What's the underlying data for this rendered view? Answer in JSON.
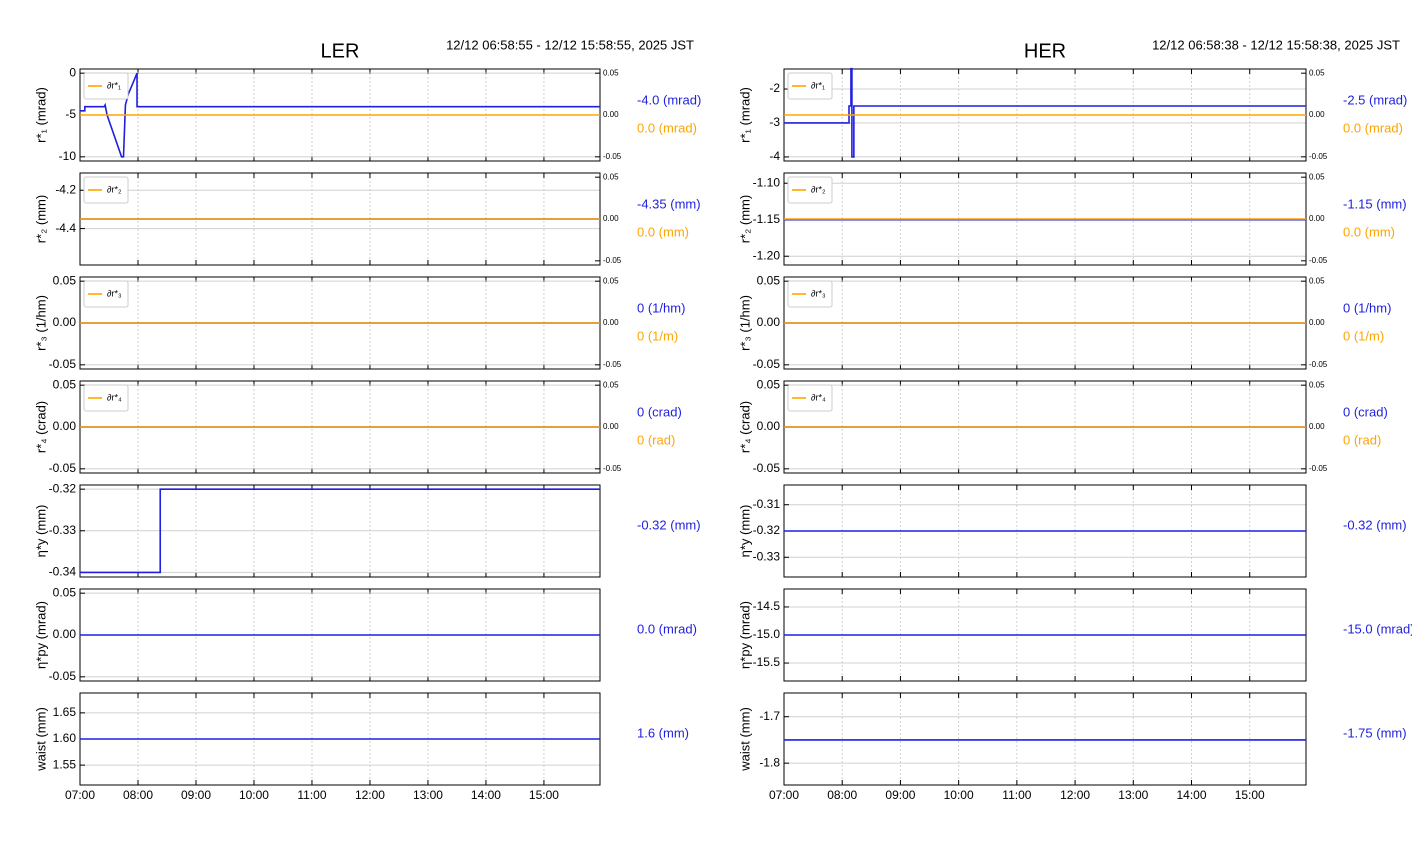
{
  "chart_data": [
    {
      "type": "line",
      "title": "LER",
      "subtitle": "12/12 06:58:55 - 12/12 15:58:55, 2025 JST",
      "ylabel": "r*₁ (mrad)",
      "xlim": [
        "07:00",
        "15:58"
      ],
      "xticks": [
        "07:00",
        "08:00",
        "09:00",
        "10:00",
        "11:00",
        "12:00",
        "13:00",
        "14:00",
        "15:00"
      ],
      "ylim": [
        -10.5,
        0.5
      ],
      "yticks": [
        0,
        -5,
        -10
      ],
      "y2lim": [
        -0.055,
        0.055
      ],
      "y2ticks": [
        0.05,
        {
          "value": 0,
          "label": "0.00"
        },
        -0.05
      ],
      "grid": true,
      "legend": "upper left",
      "series": [
        {
          "color": "#1f1fe0",
          "x": [
            "07:00",
            "07:05",
            "07:05",
            "07:25",
            "07:26",
            "07:28",
            "07:43",
            "07:45",
            "07:47",
            "07:50",
            "07:59",
            "07:59",
            "15:58"
          ],
          "values": [
            -4.5,
            -4.5,
            -4,
            -4,
            -3.8,
            -5,
            -10,
            -10,
            -3.8,
            -2.5,
            0,
            -4,
            -4
          ],
          "readout": "-4.0 (mrad)"
        },
        {
          "name": "∂r*₁",
          "color": "#ffa500",
          "axis": "y2",
          "x": [
            "07:00",
            "15:58"
          ],
          "values": [
            0,
            0
          ],
          "readout": "0.0 (mrad)"
        }
      ]
    },
    {
      "type": "line",
      "ylabel": "r*₂ (mm)",
      "xlim": [
        "07:00",
        "15:58"
      ],
      "xticks": [
        "07:00",
        "08:00",
        "09:00",
        "10:00",
        "11:00",
        "12:00",
        "13:00",
        "14:00",
        "15:00"
      ],
      "ylim": [
        -4.59,
        -4.11
      ],
      "yticks": [
        -4.2,
        -4.4
      ],
      "y2lim": [
        -0.055,
        0.055
      ],
      "y2ticks": [
        0.05,
        {
          "value": 0,
          "label": "0.00"
        },
        -0.05
      ],
      "grid": true,
      "legend": "upper left",
      "series": [
        {
          "color": "#1f1fe0",
          "x": [
            "07:00",
            "15:58"
          ],
          "values": [
            -4.35,
            -4.35
          ],
          "readout": "-4.35 (mm)"
        },
        {
          "name": "∂r*₂",
          "color": "#ffa500",
          "axis": "y2",
          "x": [
            "07:00",
            "15:58"
          ],
          "values": [
            0,
            0
          ],
          "readout": "0.0 (mm)"
        }
      ]
    },
    {
      "type": "line",
      "ylabel": "r*₃ (1/hm)",
      "xlim": [
        "07:00",
        "15:58"
      ],
      "xticks": [
        "07:00",
        "08:00",
        "09:00",
        "10:00",
        "11:00",
        "12:00",
        "13:00",
        "14:00",
        "15:00"
      ],
      "ylim": [
        -0.055,
        0.055
      ],
      "yticks": [
        0.05,
        {
          "value": 0,
          "label": "0.00"
        },
        -0.05
      ],
      "y2lim": [
        -0.055,
        0.055
      ],
      "y2ticks": [
        0.05,
        {
          "value": 0,
          "label": "0.00"
        },
        -0.05
      ],
      "grid": true,
      "legend": "upper left",
      "series": [
        {
          "color": "#1f1fe0",
          "x": [
            "07:00",
            "15:58"
          ],
          "values": [
            0,
            0
          ],
          "readout": "0 (1/hm)"
        },
        {
          "name": "∂r*₃",
          "color": "#ffa500",
          "axis": "y2",
          "x": [
            "07:00",
            "15:58"
          ],
          "values": [
            0,
            0
          ],
          "readout": "0 (1/m)"
        }
      ]
    },
    {
      "type": "line",
      "ylabel": "r*₄ (crad)",
      "xlim": [
        "07:00",
        "15:58"
      ],
      "xticks": [
        "07:00",
        "08:00",
        "09:00",
        "10:00",
        "11:00",
        "12:00",
        "13:00",
        "14:00",
        "15:00"
      ],
      "ylim": [
        -0.055,
        0.055
      ],
      "yticks": [
        0.05,
        {
          "value": 0,
          "label": "0.00"
        },
        -0.05
      ],
      "y2lim": [
        -0.055,
        0.055
      ],
      "y2ticks": [
        0.05,
        {
          "value": 0,
          "label": "0.00"
        },
        -0.05
      ],
      "grid": true,
      "legend": "upper left",
      "series": [
        {
          "color": "#1f1fe0",
          "x": [
            "07:00",
            "15:58"
          ],
          "values": [
            0,
            0
          ],
          "readout": "0 (crad)"
        },
        {
          "name": "∂r*₄",
          "color": "#ffa500",
          "axis": "y2",
          "x": [
            "07:00",
            "15:58"
          ],
          "values": [
            0,
            0
          ],
          "readout": "0 (rad)"
        }
      ]
    },
    {
      "type": "line",
      "ylabel": "η*y (mm)",
      "xlim": [
        "07:00",
        "15:58"
      ],
      "xticks": [
        "07:00",
        "08:00",
        "09:00",
        "10:00",
        "11:00",
        "12:00",
        "13:00",
        "14:00",
        "15:00"
      ],
      "ylim": [
        -0.3411,
        -0.319
      ],
      "yticks": [
        -0.32,
        -0.33,
        -0.34
      ],
      "grid": true,
      "series": [
        {
          "color": "#1f1fe0",
          "x": [
            "07:00",
            "08:23",
            "08:23",
            "15:58"
          ],
          "values": [
            -0.34,
            -0.34,
            -0.32,
            -0.32
          ],
          "readout": "-0.32 (mm)"
        }
      ]
    },
    {
      "type": "line",
      "ylabel": "η*py (mrad)",
      "xlim": [
        "07:00",
        "15:58"
      ],
      "xticks": [
        "07:00",
        "08:00",
        "09:00",
        "10:00",
        "11:00",
        "12:00",
        "13:00",
        "14:00",
        "15:00"
      ],
      "ylim": [
        -0.055,
        0.055
      ],
      "yticks": [
        0.05,
        {
          "value": 0,
          "label": "0.00"
        },
        -0.05
      ],
      "grid": true,
      "series": [
        {
          "color": "#1f1fe0",
          "x": [
            "07:00",
            "15:58"
          ],
          "values": [
            0,
            0
          ],
          "readout": "0.0 (mrad)"
        }
      ]
    },
    {
      "type": "line",
      "ylabel": "waist (mm)",
      "xlim": [
        "07:00",
        "15:58"
      ],
      "xticks": [
        "07:00",
        "08:00",
        "09:00",
        "10:00",
        "11:00",
        "12:00",
        "13:00",
        "14:00",
        "15:00"
      ],
      "ylim": [
        1.512,
        1.688
      ],
      "yticks": [
        1.65,
        {
          "value": 1.6,
          "label": "1.60"
        },
        1.55
      ],
      "grid": true,
      "series": [
        {
          "color": "#1f1fe0",
          "x": [
            "07:00",
            "15:58"
          ],
          "values": [
            1.6,
            1.6
          ],
          "readout": "1.6 (mm)"
        }
      ]
    },
    {
      "type": "line",
      "title": "HER",
      "subtitle": "12/12 06:58:38 - 12/12 15:58:38, 2025 JST",
      "ylabel": "r*₁ (mrad)",
      "xlim": [
        "07:00",
        "15:58"
      ],
      "xticks": [
        "07:00",
        "08:00",
        "09:00",
        "10:00",
        "11:00",
        "12:00",
        "13:00",
        "14:00",
        "15:00"
      ],
      "ylim": [
        -4.12,
        -1.41
      ],
      "yticks": [
        -2,
        -3,
        -4
      ],
      "y2lim": [
        -0.055,
        0.055
      ],
      "y2ticks": [
        0.05,
        {
          "value": 0,
          "label": "0.00"
        },
        -0.05
      ],
      "grid": true,
      "legend": "upper left",
      "series": [
        {
          "color": "#1f1fe0",
          "x": [
            "07:00",
            "08:07",
            "08:07",
            "08:09",
            "08:09",
            "08:10",
            "08:10",
            "08:12",
            "08:12",
            "15:58"
          ],
          "values": [
            -3,
            -3,
            -2.5,
            -2.5,
            -1.4,
            -1.4,
            -4,
            -4,
            -2.5,
            -2.5
          ],
          "readout": "-2.5 (mrad)"
        },
        {
          "name": "∂r*₁",
          "color": "#ffa500",
          "axis": "y2",
          "x": [
            "07:00",
            "15:58"
          ],
          "values": [
            0,
            0
          ],
          "readout": "0.0 (mrad)"
        }
      ]
    },
    {
      "type": "line",
      "ylabel": "r*₂ (mm)",
      "xlim": [
        "07:00",
        "15:58"
      ],
      "xticks": [
        "07:00",
        "08:00",
        "09:00",
        "10:00",
        "11:00",
        "12:00",
        "13:00",
        "14:00",
        "15:00"
      ],
      "ylim": [
        -1.212,
        -1.086
      ],
      "yticks": [
        {
          "value": -1.1,
          "label": "-1.10"
        },
        -1.15,
        {
          "value": -1.2,
          "label": "-1.20"
        }
      ],
      "y2lim": [
        -0.055,
        0.055
      ],
      "y2ticks": [
        0.05,
        {
          "value": 0,
          "label": "0.00"
        },
        -0.05
      ],
      "grid": true,
      "legend": "upper left",
      "series": [
        {
          "color": "#1f1fe0",
          "x": [
            "07:00",
            "15:58"
          ],
          "values": [
            -1.15,
            -1.15
          ],
          "readout": "-1.15 (mm)"
        },
        {
          "name": "∂r*₂",
          "color": "#ffa500",
          "axis": "y2",
          "x": [
            "07:00",
            "15:58"
          ],
          "values": [
            0,
            0
          ],
          "readout": "0.0 (mm)"
        }
      ]
    },
    {
      "type": "line",
      "ylabel": "r*₃ (1/hm)",
      "xlim": [
        "07:00",
        "15:58"
      ],
      "xticks": [
        "07:00",
        "08:00",
        "09:00",
        "10:00",
        "11:00",
        "12:00",
        "13:00",
        "14:00",
        "15:00"
      ],
      "ylim": [
        -0.055,
        0.055
      ],
      "yticks": [
        0.05,
        {
          "value": 0,
          "label": "0.00"
        },
        -0.05
      ],
      "y2lim": [
        -0.055,
        0.055
      ],
      "y2ticks": [
        0.05,
        {
          "value": 0,
          "label": "0.00"
        },
        -0.05
      ],
      "grid": true,
      "legend": "upper left",
      "series": [
        {
          "color": "#1f1fe0",
          "x": [
            "07:00",
            "15:58"
          ],
          "values": [
            0,
            0
          ],
          "readout": "0 (1/hm)"
        },
        {
          "name": "∂r*₃",
          "color": "#ffa500",
          "axis": "y2",
          "x": [
            "07:00",
            "15:58"
          ],
          "values": [
            0,
            0
          ],
          "readout": "0 (1/m)"
        }
      ]
    },
    {
      "type": "line",
      "ylabel": "r*₄ (crad)",
      "xlim": [
        "07:00",
        "15:58"
      ],
      "xticks": [
        "07:00",
        "08:00",
        "09:00",
        "10:00",
        "11:00",
        "12:00",
        "13:00",
        "14:00",
        "15:00"
      ],
      "ylim": [
        -0.055,
        0.055
      ],
      "yticks": [
        0.05,
        {
          "value": 0,
          "label": "0.00"
        },
        -0.05
      ],
      "y2lim": [
        -0.055,
        0.055
      ],
      "y2ticks": [
        0.05,
        {
          "value": 0,
          "label": "0.00"
        },
        -0.05
      ],
      "grid": true,
      "legend": "upper left",
      "series": [
        {
          "color": "#1f1fe0",
          "x": [
            "07:00",
            "15:58"
          ],
          "values": [
            0,
            0
          ],
          "readout": "0 (crad)"
        },
        {
          "name": "∂r*₄",
          "color": "#ffa500",
          "axis": "y2",
          "x": [
            "07:00",
            "15:58"
          ],
          "values": [
            0,
            0
          ],
          "readout": "0 (rad)"
        }
      ]
    },
    {
      "type": "line",
      "ylabel": "η*y (mm)",
      "xlim": [
        "07:00",
        "15:58"
      ],
      "xticks": [
        "07:00",
        "08:00",
        "09:00",
        "10:00",
        "11:00",
        "12:00",
        "13:00",
        "14:00",
        "15:00"
      ],
      "ylim": [
        -0.3375,
        -0.3025
      ],
      "yticks": [
        -0.31,
        -0.32,
        -0.33
      ],
      "grid": true,
      "series": [
        {
          "color": "#1f1fe0",
          "x": [
            "07:00",
            "15:58"
          ],
          "values": [
            -0.32,
            -0.32
          ],
          "readout": "-0.32 (mm)"
        }
      ]
    },
    {
      "type": "line",
      "ylabel": "η*py (mrad)",
      "xlim": [
        "07:00",
        "15:58"
      ],
      "xticks": [
        "07:00",
        "08:00",
        "09:00",
        "10:00",
        "11:00",
        "12:00",
        "13:00",
        "14:00",
        "15:00"
      ],
      "ylim": [
        -15.82,
        -14.18
      ],
      "yticks": [
        -14.5,
        {
          "value": -15,
          "label": "-15.0"
        },
        -15.5
      ],
      "grid": true,
      "series": [
        {
          "color": "#1f1fe0",
          "x": [
            "07:00",
            "15:58"
          ],
          "values": [
            -15,
            -15
          ],
          "readout": "-15.0 (mrad)"
        }
      ]
    },
    {
      "type": "line",
      "ylabel": "waist (mm)",
      "xlim": [
        "07:00",
        "15:58"
      ],
      "xticks": [
        "07:00",
        "08:00",
        "09:00",
        "10:00",
        "11:00",
        "12:00",
        "13:00",
        "14:00",
        "15:00"
      ],
      "ylim": [
        -1.847,
        -1.649
      ],
      "yticks": [
        -1.7,
        -1.8
      ],
      "grid": true,
      "series": [
        {
          "color": "#1f1fe0",
          "x": [
            "07:00",
            "15:58"
          ],
          "values": [
            -1.75,
            -1.75
          ],
          "readout": "-1.75 (mm)"
        }
      ]
    }
  ]
}
